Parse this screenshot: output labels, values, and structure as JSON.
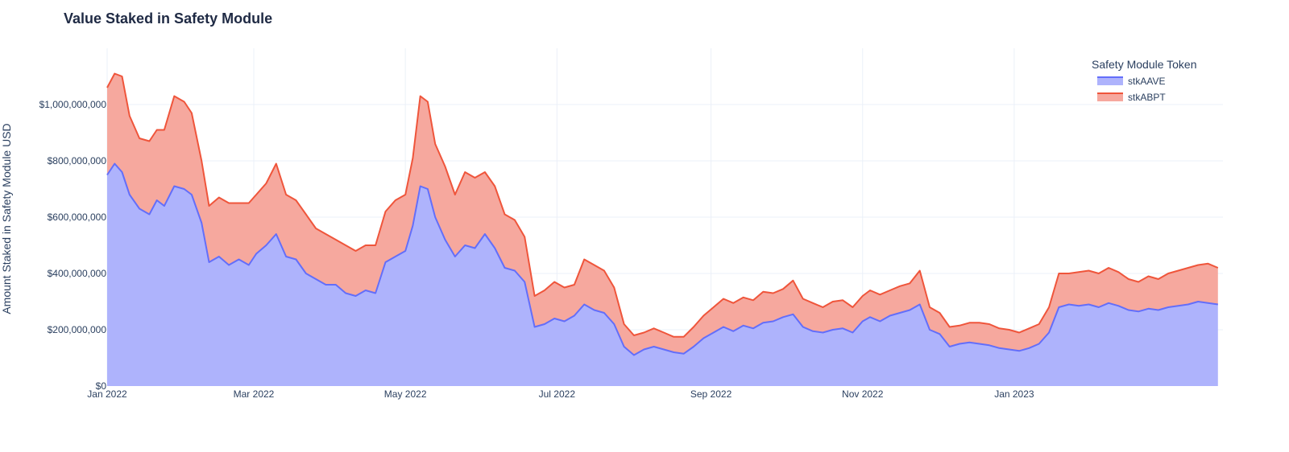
{
  "chart_data": {
    "type": "area",
    "title": "Value Staked in Safety Module",
    "xlabel": "",
    "ylabel": "Amount Staked in Safety Module USD",
    "ylim": [
      0,
      1200000000
    ],
    "xlim": [
      "2022-01-01",
      "2023-03-26"
    ],
    "stacked": true,
    "grid": true,
    "legend": {
      "title": "Safety Module Token",
      "placement": "top-right"
    },
    "x_ticks": [
      {
        "date": "2022-01-01",
        "label": "Jan 2022"
      },
      {
        "date": "2022-03-01",
        "label": "Mar 2022"
      },
      {
        "date": "2022-05-01",
        "label": "May 2022"
      },
      {
        "date": "2022-07-01",
        "label": "Jul 2022"
      },
      {
        "date": "2022-09-01",
        "label": "Sep 2022"
      },
      {
        "date": "2022-11-01",
        "label": "Nov 2022"
      },
      {
        "date": "2023-01-01",
        "label": "Jan 2023"
      }
    ],
    "y_ticks": [
      {
        "value": 0,
        "label": "$0"
      },
      {
        "value": 200000000,
        "label": "$200,000,000"
      },
      {
        "value": 400000000,
        "label": "$400,000,000"
      },
      {
        "value": 600000000,
        "label": "$600,000,000"
      },
      {
        "value": 800000000,
        "label": "$800,000,000"
      },
      {
        "value": 1000000000,
        "label": "$1,000,000,000"
      }
    ],
    "series": [
      {
        "name": "stkAAVE",
        "line_color": "#636efa",
        "fill_color": "#aeb3fc",
        "points": [
          [
            "2022-01-01",
            750000000
          ],
          [
            "2022-01-04",
            790000000
          ],
          [
            "2022-01-07",
            760000000
          ],
          [
            "2022-01-10",
            680000000
          ],
          [
            "2022-01-14",
            630000000
          ],
          [
            "2022-01-18",
            610000000
          ],
          [
            "2022-01-21",
            660000000
          ],
          [
            "2022-01-24",
            640000000
          ],
          [
            "2022-01-28",
            710000000
          ],
          [
            "2022-02-01",
            700000000
          ],
          [
            "2022-02-04",
            680000000
          ],
          [
            "2022-02-08",
            580000000
          ],
          [
            "2022-02-11",
            440000000
          ],
          [
            "2022-02-15",
            460000000
          ],
          [
            "2022-02-19",
            430000000
          ],
          [
            "2022-02-23",
            450000000
          ],
          [
            "2022-02-27",
            430000000
          ],
          [
            "2022-03-02",
            470000000
          ],
          [
            "2022-03-06",
            500000000
          ],
          [
            "2022-03-10",
            540000000
          ],
          [
            "2022-03-14",
            460000000
          ],
          [
            "2022-03-18",
            450000000
          ],
          [
            "2022-03-22",
            400000000
          ],
          [
            "2022-03-26",
            380000000
          ],
          [
            "2022-03-30",
            360000000
          ],
          [
            "2022-04-03",
            360000000
          ],
          [
            "2022-04-07",
            330000000
          ],
          [
            "2022-04-11",
            320000000
          ],
          [
            "2022-04-15",
            340000000
          ],
          [
            "2022-04-19",
            330000000
          ],
          [
            "2022-04-23",
            440000000
          ],
          [
            "2022-04-27",
            460000000
          ],
          [
            "2022-05-01",
            480000000
          ],
          [
            "2022-05-04",
            570000000
          ],
          [
            "2022-05-07",
            710000000
          ],
          [
            "2022-05-10",
            700000000
          ],
          [
            "2022-05-13",
            600000000
          ],
          [
            "2022-05-17",
            520000000
          ],
          [
            "2022-05-21",
            460000000
          ],
          [
            "2022-05-25",
            500000000
          ],
          [
            "2022-05-29",
            490000000
          ],
          [
            "2022-06-02",
            540000000
          ],
          [
            "2022-06-06",
            490000000
          ],
          [
            "2022-06-10",
            420000000
          ],
          [
            "2022-06-14",
            410000000
          ],
          [
            "2022-06-18",
            370000000
          ],
          [
            "2022-06-22",
            210000000
          ],
          [
            "2022-06-26",
            220000000
          ],
          [
            "2022-06-30",
            240000000
          ],
          [
            "2022-07-04",
            230000000
          ],
          [
            "2022-07-08",
            250000000
          ],
          [
            "2022-07-12",
            290000000
          ],
          [
            "2022-07-16",
            270000000
          ],
          [
            "2022-07-20",
            260000000
          ],
          [
            "2022-07-24",
            220000000
          ],
          [
            "2022-07-28",
            140000000
          ],
          [
            "2022-08-01",
            110000000
          ],
          [
            "2022-08-05",
            130000000
          ],
          [
            "2022-08-09",
            140000000
          ],
          [
            "2022-08-13",
            130000000
          ],
          [
            "2022-08-17",
            120000000
          ],
          [
            "2022-08-21",
            115000000
          ],
          [
            "2022-08-25",
            140000000
          ],
          [
            "2022-08-29",
            170000000
          ],
          [
            "2022-09-02",
            190000000
          ],
          [
            "2022-09-06",
            210000000
          ],
          [
            "2022-09-10",
            195000000
          ],
          [
            "2022-09-14",
            215000000
          ],
          [
            "2022-09-18",
            205000000
          ],
          [
            "2022-09-22",
            225000000
          ],
          [
            "2022-09-26",
            230000000
          ],
          [
            "2022-09-30",
            245000000
          ],
          [
            "2022-10-04",
            255000000
          ],
          [
            "2022-10-08",
            210000000
          ],
          [
            "2022-10-12",
            195000000
          ],
          [
            "2022-10-16",
            190000000
          ],
          [
            "2022-10-20",
            200000000
          ],
          [
            "2022-10-24",
            205000000
          ],
          [
            "2022-10-28",
            190000000
          ],
          [
            "2022-11-01",
            230000000
          ],
          [
            "2022-11-04",
            245000000
          ],
          [
            "2022-11-08",
            230000000
          ],
          [
            "2022-11-12",
            250000000
          ],
          [
            "2022-11-16",
            260000000
          ],
          [
            "2022-11-20",
            270000000
          ],
          [
            "2022-11-24",
            290000000
          ],
          [
            "2022-11-28",
            200000000
          ],
          [
            "2022-12-02",
            185000000
          ],
          [
            "2022-12-06",
            140000000
          ],
          [
            "2022-12-10",
            150000000
          ],
          [
            "2022-12-14",
            155000000
          ],
          [
            "2022-12-18",
            150000000
          ],
          [
            "2022-12-22",
            145000000
          ],
          [
            "2022-12-26",
            135000000
          ],
          [
            "2022-12-30",
            130000000
          ],
          [
            "2023-01-03",
            125000000
          ],
          [
            "2023-01-07",
            135000000
          ],
          [
            "2023-01-11",
            150000000
          ],
          [
            "2023-01-15",
            190000000
          ],
          [
            "2023-01-19",
            280000000
          ],
          [
            "2023-01-23",
            290000000
          ],
          [
            "2023-01-27",
            285000000
          ],
          [
            "2023-01-31",
            290000000
          ],
          [
            "2023-02-04",
            280000000
          ],
          [
            "2023-02-08",
            295000000
          ],
          [
            "2023-02-12",
            285000000
          ],
          [
            "2023-02-16",
            270000000
          ],
          [
            "2023-02-20",
            265000000
          ],
          [
            "2023-02-24",
            275000000
          ],
          [
            "2023-02-28",
            270000000
          ],
          [
            "2023-03-04",
            280000000
          ],
          [
            "2023-03-08",
            285000000
          ],
          [
            "2023-03-12",
            290000000
          ],
          [
            "2023-03-16",
            300000000
          ],
          [
            "2023-03-20",
            295000000
          ],
          [
            "2023-03-24",
            290000000
          ]
        ]
      },
      {
        "name": "stkABPT",
        "line_color": "#ef553b",
        "fill_color": "#f6a89e",
        "points": [
          [
            "2022-01-01",
            310000000
          ],
          [
            "2022-01-04",
            320000000
          ],
          [
            "2022-01-07",
            340000000
          ],
          [
            "2022-01-10",
            280000000
          ],
          [
            "2022-01-14",
            250000000
          ],
          [
            "2022-01-18",
            260000000
          ],
          [
            "2022-01-21",
            250000000
          ],
          [
            "2022-01-24",
            270000000
          ],
          [
            "2022-01-28",
            320000000
          ],
          [
            "2022-02-01",
            310000000
          ],
          [
            "2022-02-04",
            290000000
          ],
          [
            "2022-02-08",
            220000000
          ],
          [
            "2022-02-11",
            200000000
          ],
          [
            "2022-02-15",
            210000000
          ],
          [
            "2022-02-19",
            220000000
          ],
          [
            "2022-02-23",
            200000000
          ],
          [
            "2022-02-27",
            220000000
          ],
          [
            "2022-03-02",
            210000000
          ],
          [
            "2022-03-06",
            220000000
          ],
          [
            "2022-03-10",
            250000000
          ],
          [
            "2022-03-14",
            220000000
          ],
          [
            "2022-03-18",
            210000000
          ],
          [
            "2022-03-22",
            210000000
          ],
          [
            "2022-03-26",
            180000000
          ],
          [
            "2022-03-30",
            180000000
          ],
          [
            "2022-04-03",
            160000000
          ],
          [
            "2022-04-07",
            170000000
          ],
          [
            "2022-04-11",
            160000000
          ],
          [
            "2022-04-15",
            160000000
          ],
          [
            "2022-04-19",
            170000000
          ],
          [
            "2022-04-23",
            180000000
          ],
          [
            "2022-04-27",
            200000000
          ],
          [
            "2022-05-01",
            200000000
          ],
          [
            "2022-05-04",
            240000000
          ],
          [
            "2022-05-07",
            320000000
          ],
          [
            "2022-05-10",
            310000000
          ],
          [
            "2022-05-13",
            260000000
          ],
          [
            "2022-05-17",
            260000000
          ],
          [
            "2022-05-21",
            220000000
          ],
          [
            "2022-05-25",
            260000000
          ],
          [
            "2022-05-29",
            250000000
          ],
          [
            "2022-06-02",
            220000000
          ],
          [
            "2022-06-06",
            220000000
          ],
          [
            "2022-06-10",
            190000000
          ],
          [
            "2022-06-14",
            180000000
          ],
          [
            "2022-06-18",
            160000000
          ],
          [
            "2022-06-22",
            110000000
          ],
          [
            "2022-06-26",
            120000000
          ],
          [
            "2022-06-30",
            130000000
          ],
          [
            "2022-07-04",
            120000000
          ],
          [
            "2022-07-08",
            110000000
          ],
          [
            "2022-07-12",
            160000000
          ],
          [
            "2022-07-16",
            160000000
          ],
          [
            "2022-07-20",
            150000000
          ],
          [
            "2022-07-24",
            130000000
          ],
          [
            "2022-07-28",
            80000000
          ],
          [
            "2022-08-01",
            70000000
          ],
          [
            "2022-08-05",
            60000000
          ],
          [
            "2022-08-09",
            65000000
          ],
          [
            "2022-08-13",
            60000000
          ],
          [
            "2022-08-17",
            55000000
          ],
          [
            "2022-08-21",
            60000000
          ],
          [
            "2022-08-25",
            70000000
          ],
          [
            "2022-08-29",
            80000000
          ],
          [
            "2022-09-02",
            90000000
          ],
          [
            "2022-09-06",
            100000000
          ],
          [
            "2022-09-10",
            100000000
          ],
          [
            "2022-09-14",
            100000000
          ],
          [
            "2022-09-18",
            100000000
          ],
          [
            "2022-09-22",
            110000000
          ],
          [
            "2022-09-26",
            100000000
          ],
          [
            "2022-09-30",
            100000000
          ],
          [
            "2022-10-04",
            120000000
          ],
          [
            "2022-10-08",
            100000000
          ],
          [
            "2022-10-12",
            100000000
          ],
          [
            "2022-10-16",
            90000000
          ],
          [
            "2022-10-20",
            100000000
          ],
          [
            "2022-10-24",
            100000000
          ],
          [
            "2022-10-28",
            90000000
          ],
          [
            "2022-11-01",
            90000000
          ],
          [
            "2022-11-04",
            95000000
          ],
          [
            "2022-11-08",
            95000000
          ],
          [
            "2022-11-12",
            90000000
          ],
          [
            "2022-11-16",
            95000000
          ],
          [
            "2022-11-20",
            95000000
          ],
          [
            "2022-11-24",
            120000000
          ],
          [
            "2022-11-28",
            80000000
          ],
          [
            "2022-12-02",
            75000000
          ],
          [
            "2022-12-06",
            70000000
          ],
          [
            "2022-12-10",
            65000000
          ],
          [
            "2022-12-14",
            70000000
          ],
          [
            "2022-12-18",
            75000000
          ],
          [
            "2022-12-22",
            75000000
          ],
          [
            "2022-12-26",
            70000000
          ],
          [
            "2022-12-30",
            70000000
          ],
          [
            "2023-01-03",
            65000000
          ],
          [
            "2023-01-07",
            70000000
          ],
          [
            "2023-01-11",
            70000000
          ],
          [
            "2023-01-15",
            90000000
          ],
          [
            "2023-01-19",
            120000000
          ],
          [
            "2023-01-23",
            110000000
          ],
          [
            "2023-01-27",
            120000000
          ],
          [
            "2023-01-31",
            120000000
          ],
          [
            "2023-02-04",
            120000000
          ],
          [
            "2023-02-08",
            125000000
          ],
          [
            "2023-02-12",
            120000000
          ],
          [
            "2023-02-16",
            110000000
          ],
          [
            "2023-02-20",
            105000000
          ],
          [
            "2023-02-24",
            115000000
          ],
          [
            "2023-02-28",
            110000000
          ],
          [
            "2023-03-04",
            120000000
          ],
          [
            "2023-03-08",
            125000000
          ],
          [
            "2023-03-12",
            130000000
          ],
          [
            "2023-03-16",
            130000000
          ],
          [
            "2023-03-20",
            140000000
          ],
          [
            "2023-03-24",
            130000000
          ]
        ]
      }
    ]
  }
}
